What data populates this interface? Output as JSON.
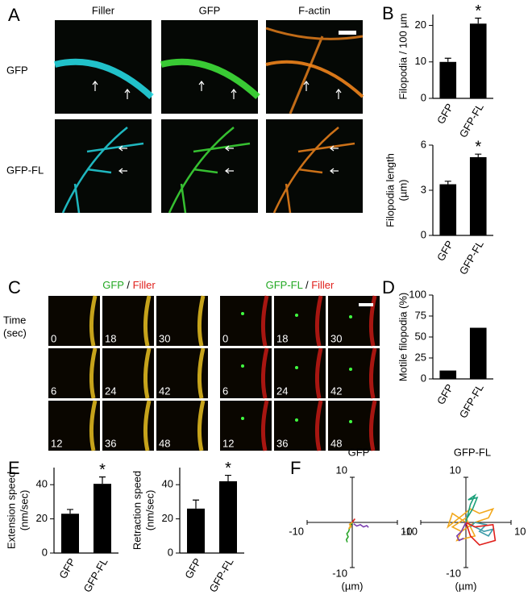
{
  "panel_labels": [
    "A",
    "B",
    "C",
    "D",
    "E",
    "F"
  ],
  "panel_a": {
    "columns": [
      "Filler",
      "GFP",
      "F-actin"
    ],
    "rows": [
      "GFP",
      "GFP-FL"
    ]
  },
  "panel_c": {
    "left_title": [
      {
        "text": "GFP",
        "color": "#22a822"
      },
      {
        "text": " / ",
        "color": "#000000"
      },
      {
        "text": "Filler",
        "color": "#e0201c"
      }
    ],
    "right_title": [
      {
        "text": "GFP-FL",
        "color": "#22a822"
      },
      {
        "text": " / ",
        "color": "#000000"
      },
      {
        "text": "Filler",
        "color": "#e0201c"
      }
    ],
    "time_label": [
      "Time",
      "(sec)"
    ],
    "left_frames": [
      "0",
      "18",
      "30",
      "6",
      "24",
      "42",
      "12",
      "36",
      "48"
    ],
    "right_frames": [
      "0",
      "18",
      "30",
      "6",
      "24",
      "42",
      "12",
      "36",
      "48"
    ]
  },
  "chart_data": [
    {
      "type": "bar",
      "ylabel": [
        "Filopodia / 100 µm"
      ],
      "categories": [
        "GFP",
        "GFP-FL"
      ],
      "values": [
        10,
        20.5
      ],
      "errors": [
        1,
        1.5
      ],
      "annotation": "*",
      "color": "#000000",
      "ylim": [
        0,
        23
      ],
      "yticks": [
        0,
        10,
        20
      ]
    },
    {
      "type": "bar",
      "ylabel": [
        "Filopodia length",
        "(µm)"
      ],
      "categories": [
        "GFP",
        "GFP-FL"
      ],
      "values": [
        3.4,
        5.2
      ],
      "errors": [
        0.2,
        0.2
      ],
      "annotation": "*",
      "color": "#000000",
      "ylim": [
        0,
        6
      ],
      "yticks": [
        0,
        3,
        6
      ]
    },
    {
      "type": "bar",
      "ylabel": [
        "Motile filopodia (%)"
      ],
      "categories": [
        "GFP",
        "GFP-FL"
      ],
      "values": [
        10,
        61
      ],
      "color": "#000000",
      "ylim": [
        0,
        100
      ],
      "yticks": [
        0,
        25,
        50,
        75,
        100
      ]
    },
    {
      "type": "bar",
      "ylabel": [
        "Extension speed",
        "(nm/sec)"
      ],
      "categories": [
        "GFP",
        "GFP-FL"
      ],
      "values": [
        23,
        40.5
      ],
      "errors": [
        2.5,
        4
      ],
      "annotation": "*",
      "color": "#000000",
      "ylim": [
        0,
        50
      ],
      "yticks": [
        0,
        20,
        40
      ]
    },
    {
      "type": "bar",
      "ylabel": [
        "Retraction speed",
        "(nm/sec)"
      ],
      "categories": [
        "GFP",
        "GFP-FL"
      ],
      "values": [
        26,
        42
      ],
      "errors": [
        5,
        3.5
      ],
      "annotation": "*",
      "color": "#000000",
      "ylim": [
        0,
        50
      ],
      "yticks": [
        0,
        20,
        40
      ]
    },
    {
      "type": "trajectory",
      "title": "GFP",
      "xlabel": "(µm)",
      "xlim": [
        -10,
        10
      ],
      "ylim": [
        -10,
        10
      ],
      "xticks": [
        -10,
        10
      ],
      "yticks": [
        -10,
        10
      ],
      "series": [
        {
          "color": "#2aa52a",
          "x": [
            0,
            -0.5,
            -0.8,
            -1.2,
            -0.9,
            -1.3,
            -1.1
          ],
          "values": [
            0,
            -1,
            -2,
            -2.5,
            -3.2,
            -3.8,
            -4.4
          ]
        },
        {
          "color": "#7b3fb0",
          "x": [
            0.3,
            1,
            1.8,
            2.5,
            3.2,
            3.6
          ],
          "values": [
            -0.3,
            -0.8,
            -0.5,
            -1,
            -0.7,
            -1.1
          ]
        },
        {
          "color": "#f2a81d",
          "x": [
            0,
            -0.6,
            -0.3,
            -0.8,
            -0.2
          ],
          "values": [
            0,
            -0.4,
            -1,
            -1.4,
            -0.6
          ]
        },
        {
          "color": "#e0201c",
          "x": [
            0,
            0.4,
            0.2,
            0.6
          ],
          "values": [
            0,
            0.6,
            0.3,
            0.8
          ]
        }
      ]
    },
    {
      "type": "trajectory",
      "title": "GFP-FL",
      "xlabel": "(µm)",
      "xlim": [
        -10,
        10
      ],
      "ylim": [
        -10,
        10
      ],
      "xticks": [
        -10,
        10
      ],
      "yticks": [
        -10,
        10
      ],
      "series": [
        {
          "color": "#f2a81d",
          "x": [
            0,
            -3,
            -4,
            1,
            3,
            6,
            5,
            2,
            -1,
            -3,
            0,
            2,
            -2,
            0
          ],
          "values": [
            0,
            2,
            -1,
            3,
            2,
            3,
            1,
            0,
            -2,
            -1,
            1,
            -3,
            -4,
            0
          ]
        },
        {
          "color": "#1aa07a",
          "x": [
            0,
            1,
            2,
            0.5,
            2.5,
            1.5,
            0.3
          ],
          "values": [
            0,
            4,
            6,
            5,
            5.5,
            3,
            1
          ]
        },
        {
          "color": "#3a9aa8",
          "x": [
            0,
            2,
            4,
            6,
            5,
            3,
            4.5,
            2,
            1
          ],
          "values": [
            0,
            -1,
            -2,
            -1.5,
            -3,
            -2,
            -0.5,
            0,
            -1
          ]
        },
        {
          "color": "#e0201c",
          "x": [
            0,
            2,
            6,
            6.5,
            3,
            1,
            0
          ],
          "values": [
            0,
            -1,
            -0.5,
            -4,
            -5,
            -3,
            0
          ]
        },
        {
          "color": "#7b3fb0",
          "x": [
            0,
            -1,
            -2,
            -1.5,
            -0.5
          ],
          "values": [
            0,
            -2,
            -3,
            -4,
            -3.5
          ]
        }
      ]
    }
  ]
}
